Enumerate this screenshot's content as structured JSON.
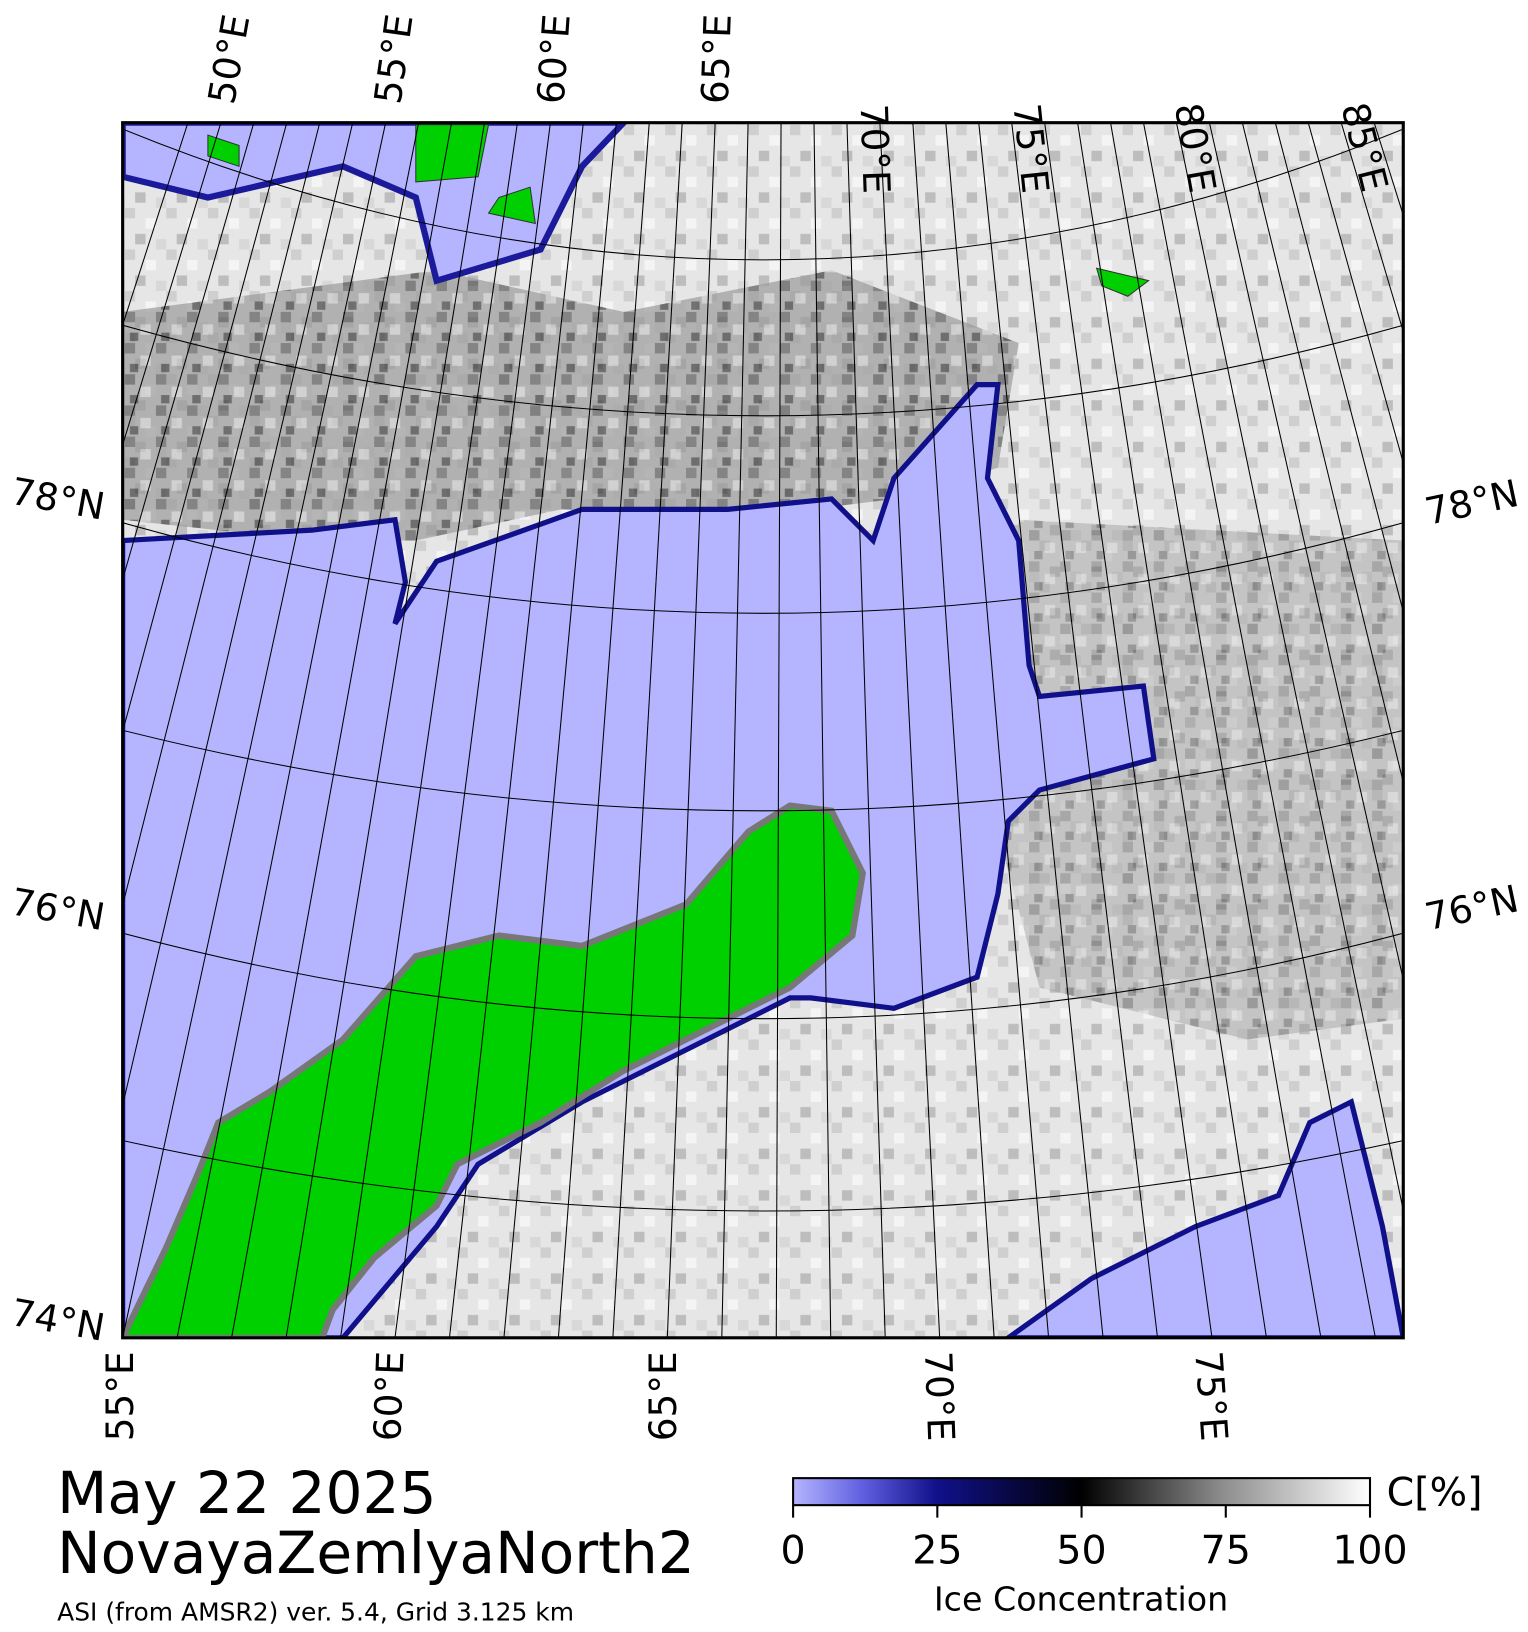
{
  "map": {
    "top_labels": [
      "50°E",
      "55°E",
      "60°E",
      "65°E",
      "70°E",
      "75°E",
      "80°E",
      "85°E"
    ],
    "left_labels": [
      "78°N",
      "76°N",
      "74°N"
    ],
    "right_labels": [
      "78°N",
      "76°N"
    ],
    "bottom_labels": [
      "55°E",
      "60°E",
      "65°E",
      "70°E",
      "75°E"
    ]
  },
  "info": {
    "date": "May 22 2025",
    "region": "NovayaZemlyaNorth2",
    "source": "ASI (from AMSR2) ver. 5.4,  Grid 3.125 km"
  },
  "colorbar": {
    "lim": [
      0,
      100
    ],
    "ticks": [
      0,
      25,
      50,
      75,
      100
    ],
    "unit": "C[%]",
    "label": "Ice Concentration"
  }
}
